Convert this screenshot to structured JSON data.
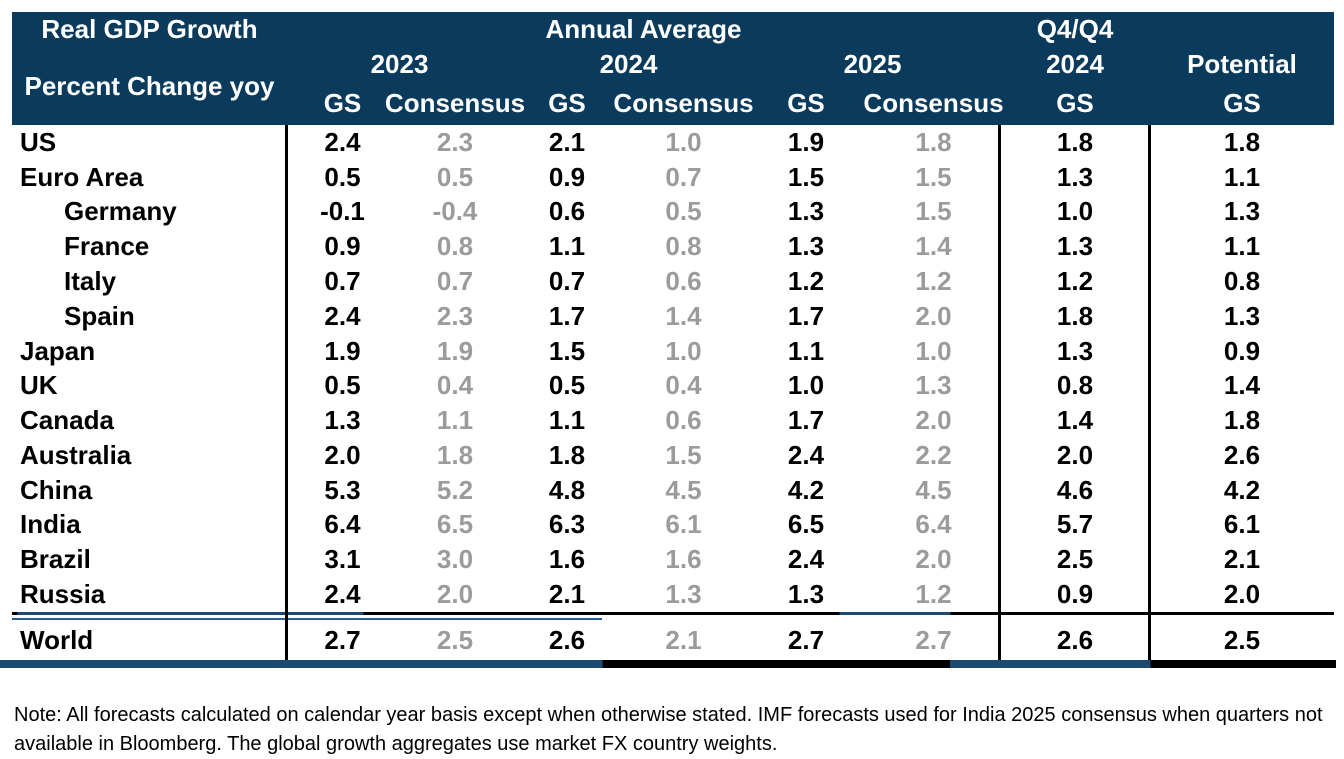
{
  "header": {
    "title": "Real GDP Growth",
    "subtitle": "Percent Change yoy",
    "annual_average": "Annual Average",
    "q4q4": "Q4/Q4",
    "years": [
      "2023",
      "2024",
      "2025"
    ],
    "q4_year": "2024",
    "potential_label": "Potential",
    "gs_label": "GS",
    "consensus_label": "Consensus"
  },
  "colors": {
    "header_bg": "#0A3A5C",
    "consensus_text": "#9B9B9B",
    "gs_text": "#000000",
    "line_navy": "#1B4A73",
    "line_blue": "#2A5C8C",
    "line_black": "#000000"
  },
  "chart_data": {
    "type": "table",
    "title": "Real GDP Growth",
    "units": "Percent Change yoy",
    "column_groups": [
      {
        "label": "Annual Average",
        "years": [
          "2023",
          "2024",
          "2025"
        ]
      },
      {
        "label": "Q4/Q4",
        "years": [
          "2024"
        ]
      }
    ],
    "columns": [
      "2023 GS",
      "2023 Consensus",
      "2024 GS",
      "2024 Consensus",
      "2025 GS",
      "2025 Consensus",
      "Q4/Q4 2024 GS",
      "Potential GS"
    ],
    "rows": [
      {
        "name": "US",
        "indent": false,
        "values": [
          "2.4",
          "2.3",
          "2.1",
          "1.0",
          "1.9",
          "1.8",
          "1.8",
          "1.8"
        ]
      },
      {
        "name": "Euro Area",
        "indent": false,
        "values": [
          "0.5",
          "0.5",
          "0.9",
          "0.7",
          "1.5",
          "1.5",
          "1.3",
          "1.1"
        ]
      },
      {
        "name": "Germany",
        "indent": true,
        "values": [
          "-0.1",
          "-0.4",
          "0.6",
          "0.5",
          "1.3",
          "1.5",
          "1.0",
          "1.3"
        ]
      },
      {
        "name": "France",
        "indent": true,
        "values": [
          "0.9",
          "0.8",
          "1.1",
          "0.8",
          "1.3",
          "1.4",
          "1.3",
          "1.1"
        ]
      },
      {
        "name": "Italy",
        "indent": true,
        "values": [
          "0.7",
          "0.7",
          "0.7",
          "0.6",
          "1.2",
          "1.2",
          "1.2",
          "0.8"
        ]
      },
      {
        "name": "Spain",
        "indent": true,
        "values": [
          "2.4",
          "2.3",
          "1.7",
          "1.4",
          "1.7",
          "2.0",
          "1.8",
          "1.3"
        ]
      },
      {
        "name": "Japan",
        "indent": false,
        "values": [
          "1.9",
          "1.9",
          "1.5",
          "1.0",
          "1.1",
          "1.0",
          "1.3",
          "0.9"
        ]
      },
      {
        "name": "UK",
        "indent": false,
        "values": [
          "0.5",
          "0.4",
          "0.5",
          "0.4",
          "1.0",
          "1.3",
          "0.8",
          "1.4"
        ]
      },
      {
        "name": "Canada",
        "indent": false,
        "values": [
          "1.3",
          "1.1",
          "1.1",
          "0.6",
          "1.7",
          "2.0",
          "1.4",
          "1.8"
        ]
      },
      {
        "name": "Australia",
        "indent": false,
        "values": [
          "2.0",
          "1.8",
          "1.8",
          "1.5",
          "2.4",
          "2.2",
          "2.0",
          "2.6"
        ]
      },
      {
        "name": "China",
        "indent": false,
        "values": [
          "5.3",
          "5.2",
          "4.8",
          "4.5",
          "4.2",
          "4.5",
          "4.6",
          "4.2"
        ]
      },
      {
        "name": "India",
        "indent": false,
        "values": [
          "6.4",
          "6.5",
          "6.3",
          "6.1",
          "6.5",
          "6.4",
          "5.7",
          "6.1"
        ]
      },
      {
        "name": "Brazil",
        "indent": false,
        "values": [
          "3.1",
          "3.0",
          "1.6",
          "1.6",
          "2.4",
          "2.0",
          "2.5",
          "2.1"
        ]
      },
      {
        "name": "Russia",
        "indent": false,
        "values": [
          "2.4",
          "2.0",
          "2.1",
          "1.3",
          "1.3",
          "1.2",
          "0.9",
          "2.0"
        ]
      }
    ],
    "world": {
      "name": "World",
      "values": [
        "2.7",
        "2.5",
        "2.6",
        "2.1",
        "2.7",
        "2.7",
        "2.6",
        "2.5"
      ]
    }
  },
  "note": "Note: All forecasts calculated on calendar year basis except when otherwise stated. IMF forecasts used for India 2025 consensus when quarters not available in Bloomberg. The global growth aggregates use market FX country weights."
}
